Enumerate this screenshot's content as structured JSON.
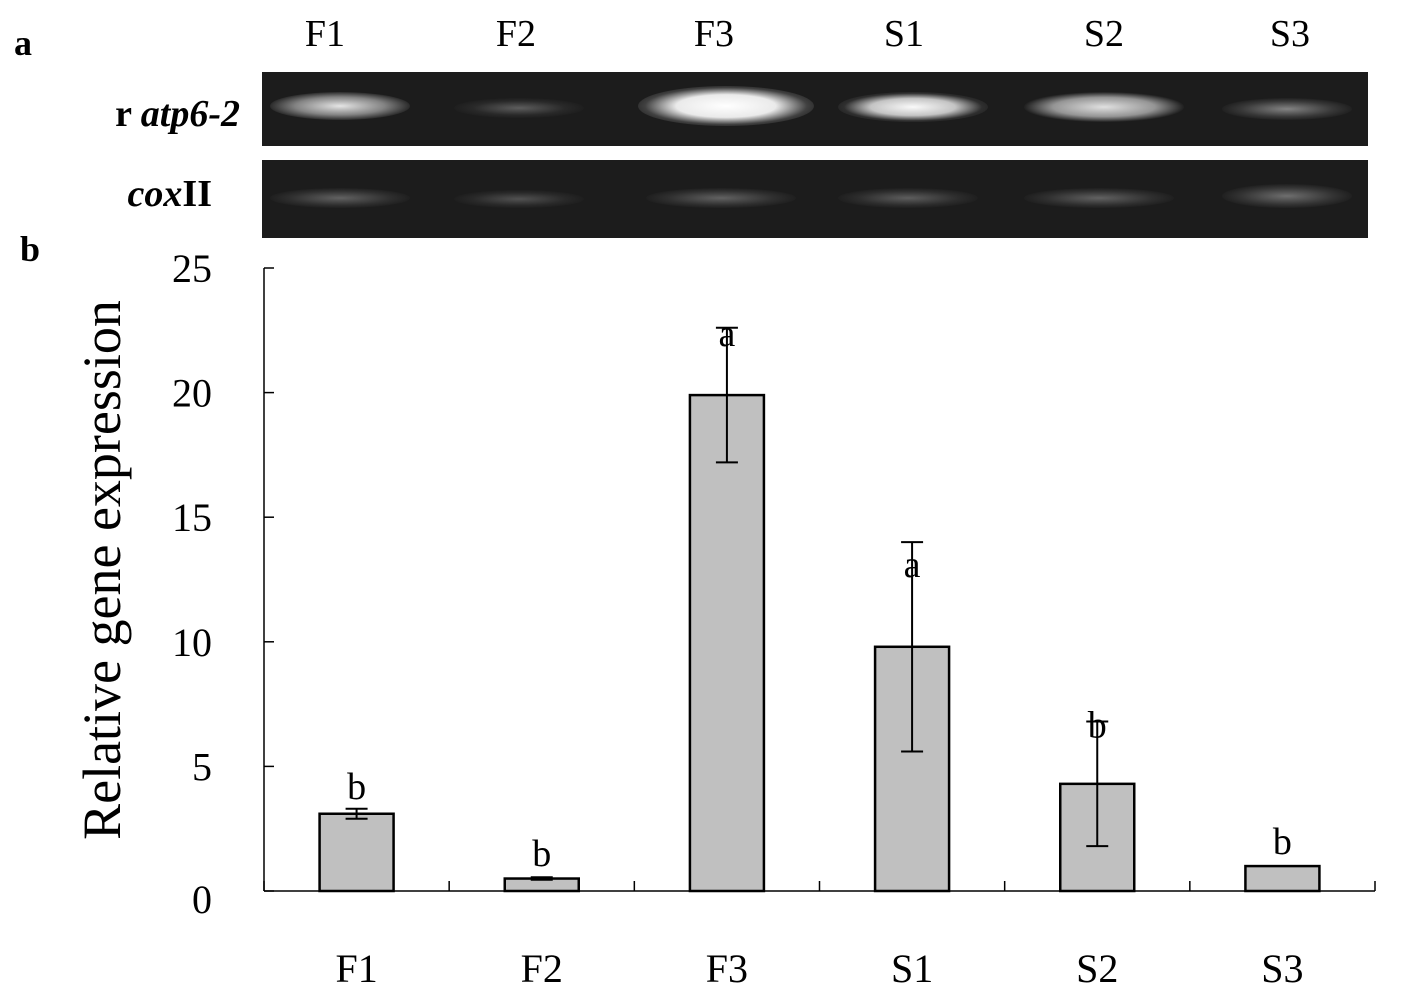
{
  "panel_a": {
    "label": "a",
    "lanes": [
      "F1",
      "F2",
      "F3",
      "S1",
      "S2",
      "S3"
    ],
    "gene_top": {
      "prefix": "r ",
      "name": "atp6-2"
    },
    "gene_bottom": {
      "name": "cox",
      "suffix": "II"
    }
  },
  "panel_b": {
    "label": "b"
  },
  "chart_data": {
    "type": "bar",
    "categories": [
      "F1",
      "F2",
      "F3",
      "S1",
      "S2",
      "S3"
    ],
    "values": [
      3.1,
      0.5,
      19.9,
      9.8,
      4.3,
      1.0
    ],
    "errors": [
      0.2,
      0.05,
      2.7,
      4.2,
      2.5,
      0.0
    ],
    "significance": [
      "b",
      "b",
      "a",
      "a",
      "b",
      "b"
    ],
    "ylabel": "Relative gene expression",
    "xlabel": "",
    "ylim": [
      0,
      25
    ],
    "yticks": [
      "0",
      "5",
      "10",
      "15",
      "20",
      "25"
    ],
    "bar_color": "#c0c0c0",
    "grid": false
  }
}
